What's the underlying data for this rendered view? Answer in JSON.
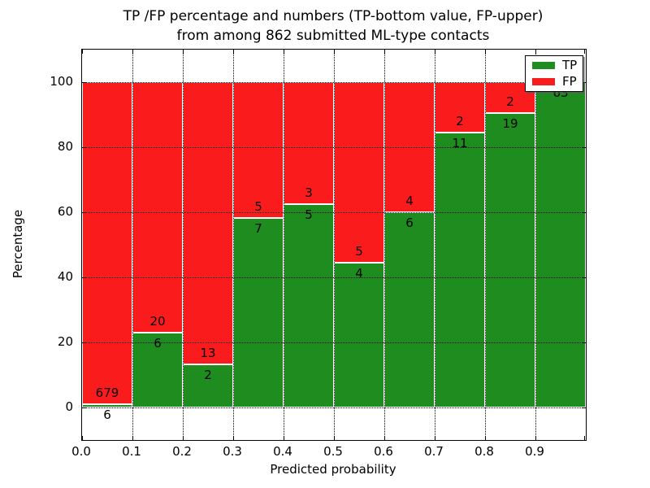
{
  "chart_data": {
    "type": "bar",
    "stacked": true,
    "title_line1": "TP /FP percentage and numbers (TP-bottom value, FP-upper)",
    "title_line2": "from among 862 submitted ML-type contacts",
    "xlabel": "Predicted probability",
    "ylabel": "Percentage",
    "xlim": [
      0.0,
      1.0
    ],
    "ylim": [
      -10,
      110
    ],
    "grid": "dotted",
    "x_tick_labels": [
      "0.0",
      "0.1",
      "0.2",
      "0.3",
      "0.4",
      "0.5",
      "0.6",
      "0.7",
      "0.8",
      "0.9"
    ],
    "y_tick_labels": [
      "0",
      "20",
      "40",
      "60",
      "80",
      "100"
    ],
    "y_tick_values": [
      0,
      20,
      40,
      60,
      80,
      100
    ],
    "bins": [
      "0.0-0.1",
      "0.1-0.2",
      "0.2-0.3",
      "0.3-0.4",
      "0.4-0.5",
      "0.5-0.6",
      "0.6-0.7",
      "0.7-0.8",
      "0.8-0.9",
      "0.9-1.0"
    ],
    "series": [
      {
        "name": "TP",
        "color": "#1f8c1f",
        "counts": [
          6,
          6,
          2,
          7,
          5,
          4,
          6,
          11,
          19,
          63
        ]
      },
      {
        "name": "FP",
        "color": "#fa1c1c",
        "counts": [
          679,
          20,
          13,
          5,
          3,
          5,
          4,
          2,
          2,
          0
        ]
      }
    ],
    "tp_percent": [
      0.88,
      23.08,
      13.33,
      58.33,
      62.5,
      44.44,
      60.0,
      84.62,
      90.48,
      100.0
    ],
    "bar_labels": {
      "tp": [
        "6",
        "6",
        "2",
        "7",
        "5",
        "4",
        "6",
        "11",
        "19",
        "63"
      ],
      "fp": [
        "679",
        "20",
        "13",
        "5",
        "3",
        "5",
        "4",
        "2",
        "2",
        ""
      ]
    },
    "legend": {
      "position": "upper right"
    }
  }
}
